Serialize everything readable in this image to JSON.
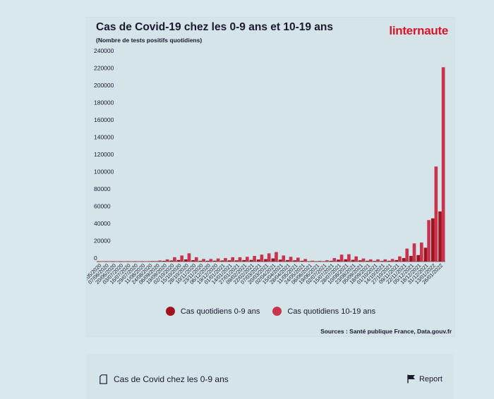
{
  "header": {
    "title": "Cas de Covid-19 chez les 0-9 ans et 10-19 ans",
    "subtitle": "(Nombre de tests positifs quotidiens)",
    "logo": "linternaute"
  },
  "colors": {
    "series_0_9": "#a0141e",
    "series_10_19": "#c8344e",
    "text": "#1a1a2e"
  },
  "legend": {
    "item_0_9": "Cas quotidiens 0-9 ans",
    "item_10_19": "Cas quotidiens 10-19 ans"
  },
  "sources": "Sources : Santé publique France, Data.gouv.fr",
  "footer": {
    "title": "Cas de Covid chez les 0-9 ans",
    "report_label": "Report"
  },
  "chart_data": {
    "type": "bar",
    "title": "Cas de Covid-19 chez les 0-9 ans et 10-19 ans",
    "subtitle": "(Nombre de tests positifs quotidiens)",
    "ylim": [
      0,
      240000
    ],
    "yticks": [
      0,
      20000,
      40000,
      60000,
      80000,
      100000,
      120000,
      140000,
      160000,
      180000,
      200000,
      220000,
      240000
    ],
    "categories": [
      "25/05/2020",
      "07/06/2020",
      "20/06/2020",
      "03/07/2020",
      "16/07/2020",
      "29/07/2020",
      "11/08/2020",
      "24/08/2020",
      "06/09/2020",
      "19/09/2020",
      "02/10/2020",
      "15/10/2020",
      "28/10/2020",
      "10/11/2020",
      "23/11/2020",
      "06/12/2020",
      "19/12/2020",
      "01/01/2021",
      "14/01/2021",
      "27/01/2021",
      "09/02/2021",
      "22/02/2021",
      "07/03/2021",
      "20/03/2021",
      "02/04/2021",
      "15/04/2021",
      "28/04/2021",
      "11/05/2021",
      "24/05/2021",
      "06/06/2021",
      "19/06/2021",
      "02/07/2021",
      "15/07/2021",
      "28/07/2021",
      "10/08/2021",
      "23/08/2021",
      "05/09/2021",
      "18/09/2021",
      "01/10/2021",
      "14/10/2021",
      "27/10/2021",
      "09/11/2021",
      "22/11/2021",
      "05/12/2021",
      "18/12/2021",
      "31/12/2021",
      "13/01/2022",
      "26/01/2022"
    ],
    "series": [
      {
        "name": "Cas quotidiens 0-9 ans",
        "values": [
          50,
          50,
          50,
          50,
          100,
          100,
          200,
          300,
          500,
          800,
          1200,
          1800,
          2500,
          1600,
          900,
          900,
          1000,
          1200,
          1400,
          1400,
          1700,
          1900,
          2300,
          2800,
          3600,
          2200,
          1700,
          1400,
          900,
          400,
          250,
          400,
          900,
          2200,
          2600,
          2000,
          1400,
          900,
          700,
          700,
          900,
          1700,
          4000,
          6500,
          7500,
          16000,
          50000,
          58000
        ]
      },
      {
        "name": "Cas quotidiens 10-19 ans",
        "values": [
          100,
          100,
          100,
          100,
          200,
          200,
          400,
          700,
          1200,
          2500,
          5000,
          7000,
          9500,
          5000,
          3000,
          3000,
          3500,
          4000,
          5000,
          5000,
          5500,
          6500,
          8000,
          9500,
          11000,
          7000,
          5500,
          4500,
          3000,
          1000,
          800,
          1500,
          4000,
          8000,
          8500,
          6000,
          3500,
          2500,
          2500,
          2500,
          3000,
          6000,
          15000,
          21000,
          22000,
          48000,
          110000,
          225000
        ]
      }
    ]
  }
}
